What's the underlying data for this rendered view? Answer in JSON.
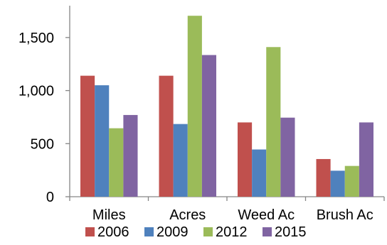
{
  "chart_data": {
    "type": "bar",
    "title": "",
    "xlabel": "",
    "ylabel": "",
    "categories": [
      "Miles",
      "Acres",
      "Weed Ac",
      "Brush Ac"
    ],
    "series": [
      {
        "name": "2006",
        "color": "#c0504d",
        "values": [
          1140,
          1140,
          700,
          355
        ]
      },
      {
        "name": "2009",
        "color": "#4f81bd",
        "values": [
          1050,
          685,
          445,
          245
        ]
      },
      {
        "name": "2012",
        "color": "#9bbb59",
        "values": [
          645,
          1705,
          1410,
          290
        ]
      },
      {
        "name": "2015",
        "color": "#8064a2",
        "values": [
          770,
          1335,
          745,
          700
        ]
      }
    ],
    "yticks": [
      "0",
      "500",
      "1,000",
      "1,500"
    ],
    "ytick_values": [
      0,
      500,
      1000,
      1500
    ],
    "ylim": [
      0,
      1800
    ],
    "grid": false,
    "legend_position": "bottom"
  }
}
